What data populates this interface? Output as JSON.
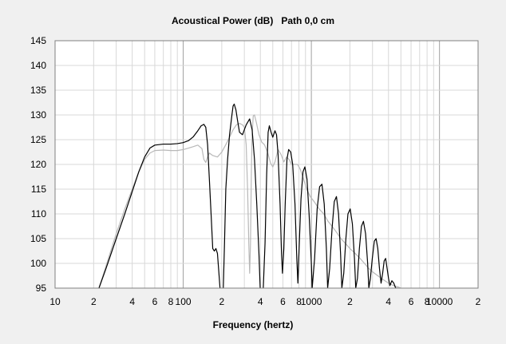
{
  "chart_data": {
    "type": "line",
    "title": "Acoustical Power (dB)   Path 0,0 cm",
    "xlabel": "Frequency (hertz)",
    "ylabel": "",
    "xscale": "log",
    "xlim": [
      10,
      20000
    ],
    "ylim": [
      95,
      145
    ],
    "x_tick_labels": [
      {
        "value": 10,
        "label": "10"
      },
      {
        "value": 20,
        "label": "2"
      },
      {
        "value": 40,
        "label": "4"
      },
      {
        "value": 60,
        "label": "6"
      },
      {
        "value": 80,
        "label": "8"
      },
      {
        "value": 100,
        "label": "100"
      },
      {
        "value": 200,
        "label": "2"
      },
      {
        "value": 400,
        "label": "4"
      },
      {
        "value": 600,
        "label": "6"
      },
      {
        "value": 800,
        "label": "8"
      },
      {
        "value": 1000,
        "label": "1000"
      },
      {
        "value": 2000,
        "label": "2"
      },
      {
        "value": 4000,
        "label": "4"
      },
      {
        "value": 6000,
        "label": "6"
      },
      {
        "value": 8000,
        "label": "8"
      },
      {
        "value": 10000,
        "label": "10000"
      },
      {
        "value": 20000,
        "label": "2"
      }
    ],
    "y_ticks": [
      95,
      100,
      105,
      110,
      115,
      120,
      125,
      130,
      135,
      140,
      145
    ],
    "grid": true,
    "legend": "none",
    "series": [
      {
        "color": "#000000",
        "points": [
          [
            21,
            94
          ],
          [
            22,
            95
          ],
          [
            25,
            99
          ],
          [
            30,
            105
          ],
          [
            35,
            110
          ],
          [
            40,
            114.5
          ],
          [
            45,
            118.5
          ],
          [
            50,
            121.5
          ],
          [
            55,
            123.3
          ],
          [
            60,
            123.9
          ],
          [
            70,
            124.1
          ],
          [
            80,
            124.1
          ],
          [
            90,
            124.2
          ],
          [
            100,
            124.4
          ],
          [
            110,
            124.8
          ],
          [
            120,
            125.6
          ],
          [
            130,
            126.8
          ],
          [
            138,
            127.8
          ],
          [
            145,
            128.1
          ],
          [
            150,
            127.5
          ],
          [
            155,
            124
          ],
          [
            160,
            117
          ],
          [
            165,
            110
          ],
          [
            170,
            103
          ],
          [
            175,
            102.5
          ],
          [
            180,
            103
          ],
          [
            185,
            102
          ],
          [
            190,
            98
          ],
          [
            195,
            94
          ],
          [
            205,
            94
          ],
          [
            210,
            104
          ],
          [
            215,
            115
          ],
          [
            222,
            121
          ],
          [
            230,
            126
          ],
          [
            240,
            130
          ],
          [
            245,
            131.8
          ],
          [
            250,
            132.2
          ],
          [
            258,
            131
          ],
          [
            265,
            129
          ],
          [
            275,
            126.5
          ],
          [
            290,
            126
          ],
          [
            310,
            128
          ],
          [
            330,
            129.2
          ],
          [
            345,
            127
          ],
          [
            360,
            121
          ],
          [
            375,
            112
          ],
          [
            390,
            102
          ],
          [
            400,
            94
          ],
          [
            420,
            94
          ],
          [
            435,
            104
          ],
          [
            448,
            118
          ],
          [
            460,
            126.5
          ],
          [
            470,
            127.8
          ],
          [
            485,
            126.5
          ],
          [
            500,
            125.5
          ],
          [
            520,
            126.8
          ],
          [
            535,
            126
          ],
          [
            550,
            122
          ],
          [
            570,
            112
          ],
          [
            585,
            102
          ],
          [
            595,
            98
          ],
          [
            610,
            103
          ],
          [
            625,
            112
          ],
          [
            645,
            121
          ],
          [
            665,
            123
          ],
          [
            690,
            122.5
          ],
          [
            715,
            120
          ],
          [
            745,
            112
          ],
          [
            770,
            101
          ],
          [
            785,
            96
          ],
          [
            805,
            104
          ],
          [
            830,
            113
          ],
          [
            860,
            118.5
          ],
          [
            890,
            119.5
          ],
          [
            925,
            117
          ],
          [
            960,
            110
          ],
          [
            1000,
            100
          ],
          [
            1015,
            95
          ],
          [
            1060,
            101
          ],
          [
            1110,
            111
          ],
          [
            1160,
            115.5
          ],
          [
            1210,
            116
          ],
          [
            1260,
            112
          ],
          [
            1310,
            103
          ],
          [
            1340,
            95
          ],
          [
            1390,
            99
          ],
          [
            1450,
            107
          ],
          [
            1510,
            112.5
          ],
          [
            1570,
            113.5
          ],
          [
            1630,
            110
          ],
          [
            1690,
            102
          ],
          [
            1730,
            95
          ],
          [
            1790,
            98
          ],
          [
            1860,
            105
          ],
          [
            1930,
            110
          ],
          [
            2010,
            111
          ],
          [
            2090,
            108
          ],
          [
            2170,
            101
          ],
          [
            2220,
            95
          ],
          [
            2290,
            97
          ],
          [
            2370,
            103
          ],
          [
            2460,
            107.5
          ],
          [
            2550,
            108.5
          ],
          [
            2650,
            106
          ],
          [
            2750,
            100
          ],
          [
            2810,
            95
          ],
          [
            2890,
            97
          ],
          [
            2990,
            101
          ],
          [
            3100,
            104.5
          ],
          [
            3200,
            105
          ],
          [
            3300,
            103
          ],
          [
            3400,
            99
          ],
          [
            3500,
            96
          ],
          [
            3600,
            98
          ],
          [
            3700,
            100.5
          ],
          [
            3800,
            101
          ],
          [
            3900,
            99
          ],
          [
            4000,
            97
          ],
          [
            4100,
            95.5
          ],
          [
            4250,
            96.5
          ],
          [
            4400,
            96
          ],
          [
            4550,
            95
          ],
          [
            4700,
            95
          ],
          [
            5000,
            94
          ]
        ]
      },
      {
        "color": "#b8b8b8",
        "points": [
          [
            21,
            94
          ],
          [
            22,
            95
          ],
          [
            25,
            99.5
          ],
          [
            30,
            106
          ],
          [
            35,
            111
          ],
          [
            40,
            115
          ],
          [
            45,
            118.5
          ],
          [
            50,
            121
          ],
          [
            55,
            122.3
          ],
          [
            60,
            122.8
          ],
          [
            70,
            122.9
          ],
          [
            80,
            122.8
          ],
          [
            90,
            122.8
          ],
          [
            100,
            123
          ],
          [
            110,
            123.3
          ],
          [
            120,
            123.6
          ],
          [
            130,
            123.9
          ],
          [
            140,
            123.2
          ],
          [
            145,
            121
          ],
          [
            150,
            120.4
          ],
          [
            155,
            121.5
          ],
          [
            160,
            122.3
          ],
          [
            170,
            121.8
          ],
          [
            185,
            121.5
          ],
          [
            200,
            122.5
          ],
          [
            215,
            124
          ],
          [
            230,
            125.5
          ],
          [
            245,
            127
          ],
          [
            260,
            128
          ],
          [
            275,
            128.3
          ],
          [
            290,
            128
          ],
          [
            300,
            127.5
          ],
          [
            310,
            124
          ],
          [
            318,
            115
          ],
          [
            325,
            104
          ],
          [
            330,
            98
          ],
          [
            335,
            104
          ],
          [
            340,
            118
          ],
          [
            345,
            126
          ],
          [
            352,
            129.8
          ],
          [
            360,
            130
          ],
          [
            372,
            128.5
          ],
          [
            390,
            126
          ],
          [
            410,
            124.5
          ],
          [
            430,
            124
          ],
          [
            455,
            122.5
          ],
          [
            480,
            120.3
          ],
          [
            500,
            119.5
          ],
          [
            520,
            120.5
          ],
          [
            550,
            123
          ],
          [
            580,
            122
          ],
          [
            610,
            120.5
          ],
          [
            640,
            121.5
          ],
          [
            670,
            121
          ],
          [
            700,
            120
          ],
          [
            740,
            120
          ],
          [
            780,
            120
          ],
          [
            820,
            119
          ],
          [
            870,
            117
          ],
          [
            920,
            115
          ],
          [
            980,
            113.5
          ],
          [
            1050,
            112.5
          ],
          [
            1150,
            111
          ],
          [
            1250,
            110
          ],
          [
            1350,
            108.5
          ],
          [
            1450,
            107.5
          ],
          [
            1550,
            106.5
          ],
          [
            1700,
            105
          ],
          [
            1850,
            104
          ],
          [
            2000,
            103
          ],
          [
            2200,
            102
          ],
          [
            2400,
            101
          ],
          [
            2600,
            100
          ],
          [
            2800,
            99
          ],
          [
            3000,
            98.3
          ],
          [
            3300,
            97.5
          ],
          [
            3600,
            96.8
          ],
          [
            4000,
            96
          ],
          [
            4400,
            95.5
          ],
          [
            4800,
            95.2
          ],
          [
            5000,
            95
          ]
        ]
      }
    ]
  }
}
